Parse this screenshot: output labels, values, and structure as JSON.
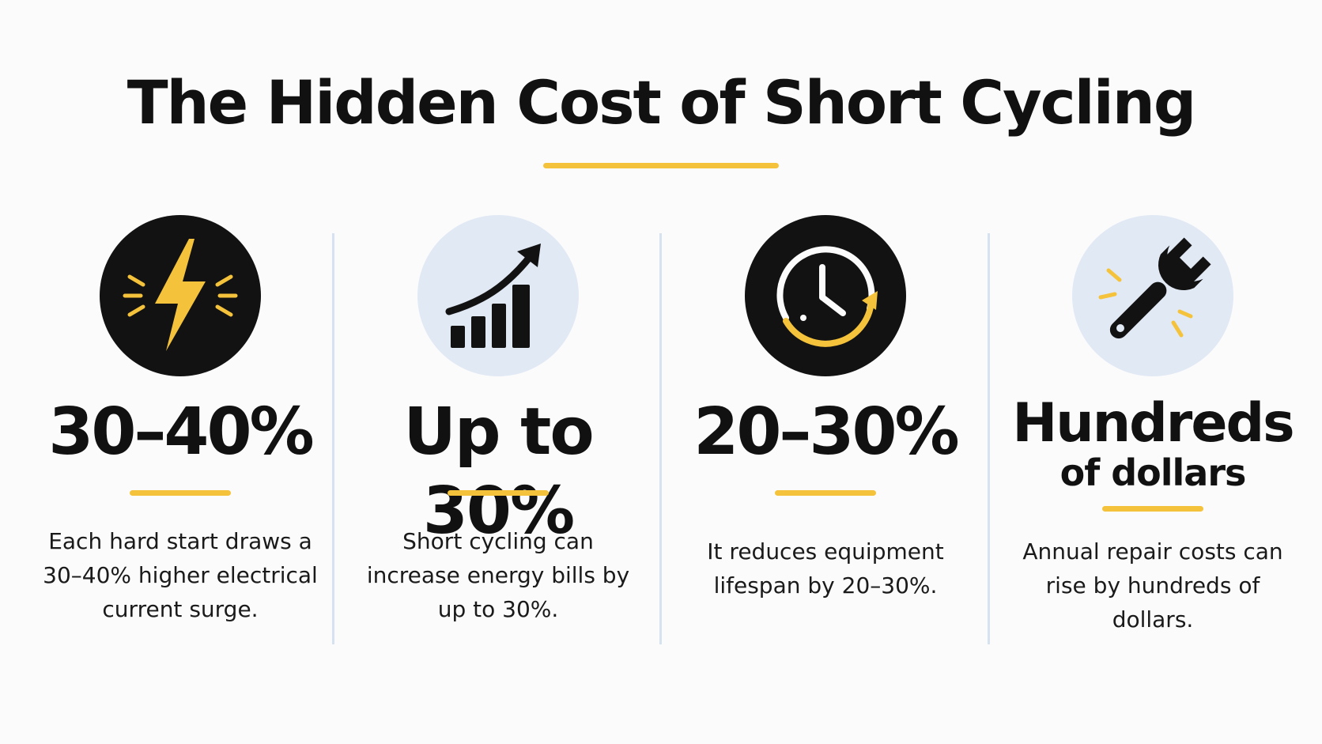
{
  "title": "The Hidden Cost of Short Cycling",
  "colors": {
    "accent": "#f5c33b",
    "dark_circle": "#121212",
    "light_circle": "#e1e9f5",
    "divider": "#d6e2f0"
  },
  "cards": [
    {
      "icon": "lightning-bolt-icon",
      "stat": "30–40%",
      "description": "Each hard start draws a 30–40% higher electrical current surge."
    },
    {
      "icon": "rising-bar-chart-icon",
      "stat": "Up to 30%",
      "description": "Short cycling can increase energy bills by up to 30%."
    },
    {
      "icon": "clock-cycle-icon",
      "stat": "20–30%",
      "description": "It reduces equipment lifespan by 20–30%."
    },
    {
      "icon": "wrench-icon",
      "stat_line1": "Hundreds",
      "stat_line2": "of dollars",
      "description": "Annual repair costs can rise by hundreds of dollars."
    }
  ]
}
